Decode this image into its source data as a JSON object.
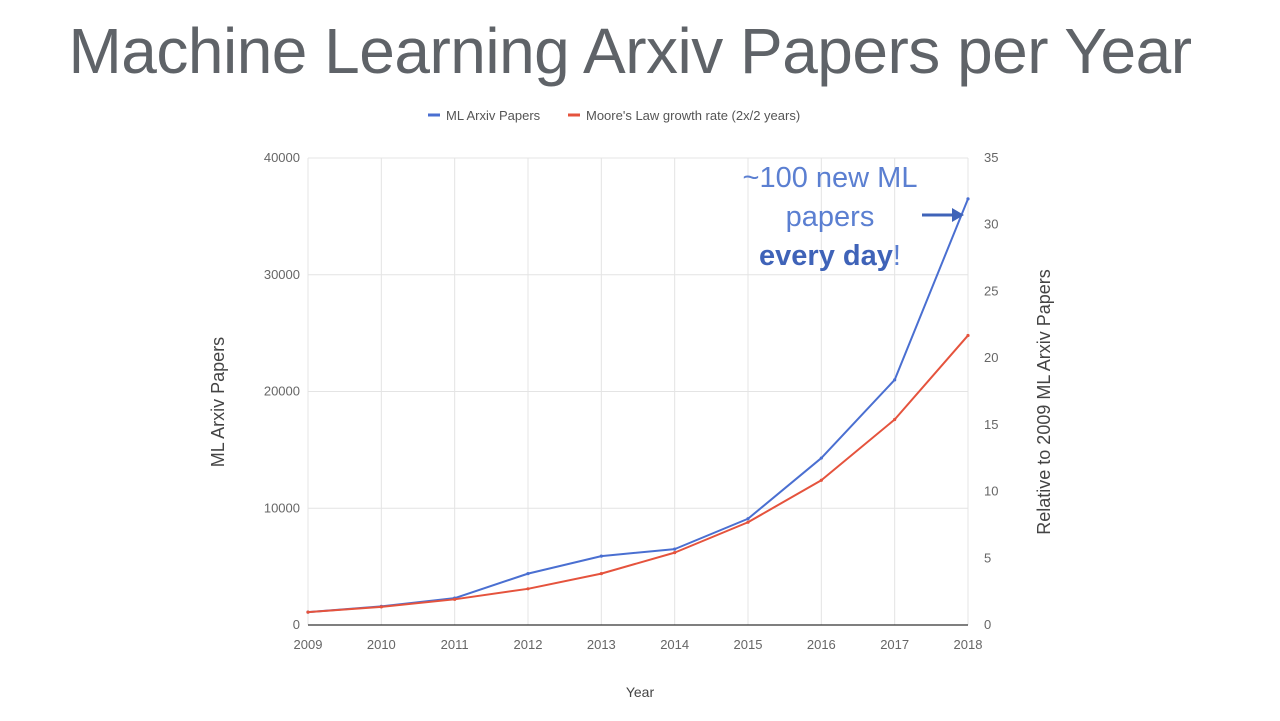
{
  "slide": {
    "title": "Machine Learning Arxiv Papers per Year"
  },
  "chart_data": {
    "type": "line",
    "xlabel": "Year",
    "ylabel": "ML Arxiv Papers",
    "ylabel_right": "Relative to 2009 ML Arxiv Papers",
    "x": [
      "2009",
      "2010",
      "2011",
      "2012",
      "2013",
      "2014",
      "2015",
      "2016",
      "2017",
      "2018"
    ],
    "ylim": [
      0,
      40000
    ],
    "yticks": [
      "0",
      "10000",
      "20000",
      "30000",
      "40000"
    ],
    "ylim_right": [
      0,
      35
    ],
    "yticks_right": [
      "0",
      "5",
      "10",
      "15",
      "20",
      "25",
      "30",
      "35"
    ],
    "grid": true,
    "legend_position": "top",
    "series": [
      {
        "name": "ML Arxiv Papers",
        "color": "#4a6fd1",
        "values": [
          1100,
          1600,
          2300,
          4400,
          5900,
          6500,
          9100,
          14300,
          21000,
          36500
        ]
      },
      {
        "name": "Moore's Law growth rate (2x/2 years)",
        "color": "#e5533d",
        "values": [
          1100,
          1550,
          2200,
          3100,
          4400,
          6200,
          8800,
          12400,
          17600,
          24800
        ]
      }
    ],
    "annotation": {
      "lines": [
        "~100 new ML",
        "papers"
      ],
      "bold_text": "every day",
      "suffix": "!",
      "color": "#5b7fd1",
      "arrow": "right-arrow-icon"
    }
  }
}
